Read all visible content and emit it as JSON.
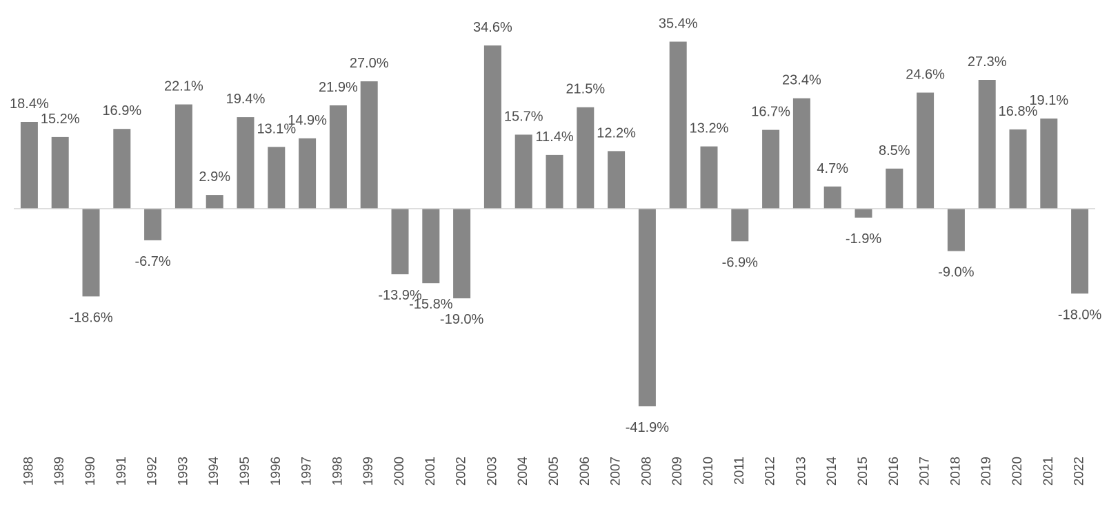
{
  "chart_data": {
    "type": "bar",
    "categories": [
      "1988",
      "1989",
      "1990",
      "1991",
      "1992",
      "1993",
      "1994",
      "1995",
      "1996",
      "1997",
      "1998",
      "1999",
      "2000",
      "2001",
      "2002",
      "2003",
      "2004",
      "2005",
      "2006",
      "2007",
      "2008",
      "2009",
      "2010",
      "2011",
      "2012",
      "2013",
      "2014",
      "2015",
      "2016",
      "2017",
      "2018",
      "2019",
      "2020",
      "2021",
      "2022"
    ],
    "values": [
      18.4,
      15.2,
      -18.6,
      16.9,
      -6.7,
      22.1,
      2.9,
      19.4,
      13.1,
      14.9,
      21.9,
      27.0,
      -13.9,
      -15.8,
      -19.0,
      34.6,
      15.7,
      11.4,
      21.5,
      12.2,
      -41.9,
      35.4,
      13.2,
      -6.9,
      16.7,
      23.4,
      4.7,
      -1.9,
      8.5,
      24.6,
      -9.0,
      27.3,
      16.8,
      19.1,
      -18.0
    ],
    "labels": [
      "18.4%",
      "15.2%",
      "-18.6%",
      "16.9%",
      "-6.7%",
      "22.1%",
      "2.9%",
      "19.4%",
      "13.1%",
      "14.9%",
      "21.9%",
      "27.0%",
      "-13.9%",
      "-15.8%",
      "-19.0%",
      "34.6%",
      "15.7%",
      "11.4%",
      "21.5%",
      "12.2%",
      "-41.9%",
      "35.4%",
      "13.2%",
      "-6.9%",
      "16.7%",
      "23.4%",
      "4.7%",
      "-1.9%",
      "8.5%",
      "24.6%",
      "-9.0%",
      "27.3%",
      "16.8%",
      "19.1%",
      "-18.0%"
    ],
    "title": "",
    "xlabel": "",
    "ylabel": "",
    "ylim": [
      -41.9,
      35.4
    ],
    "grid": false,
    "legend": "none",
    "bar_color": "#878787",
    "axis_color": "#d4d4d4",
    "label_color": "#4d4d4d"
  }
}
